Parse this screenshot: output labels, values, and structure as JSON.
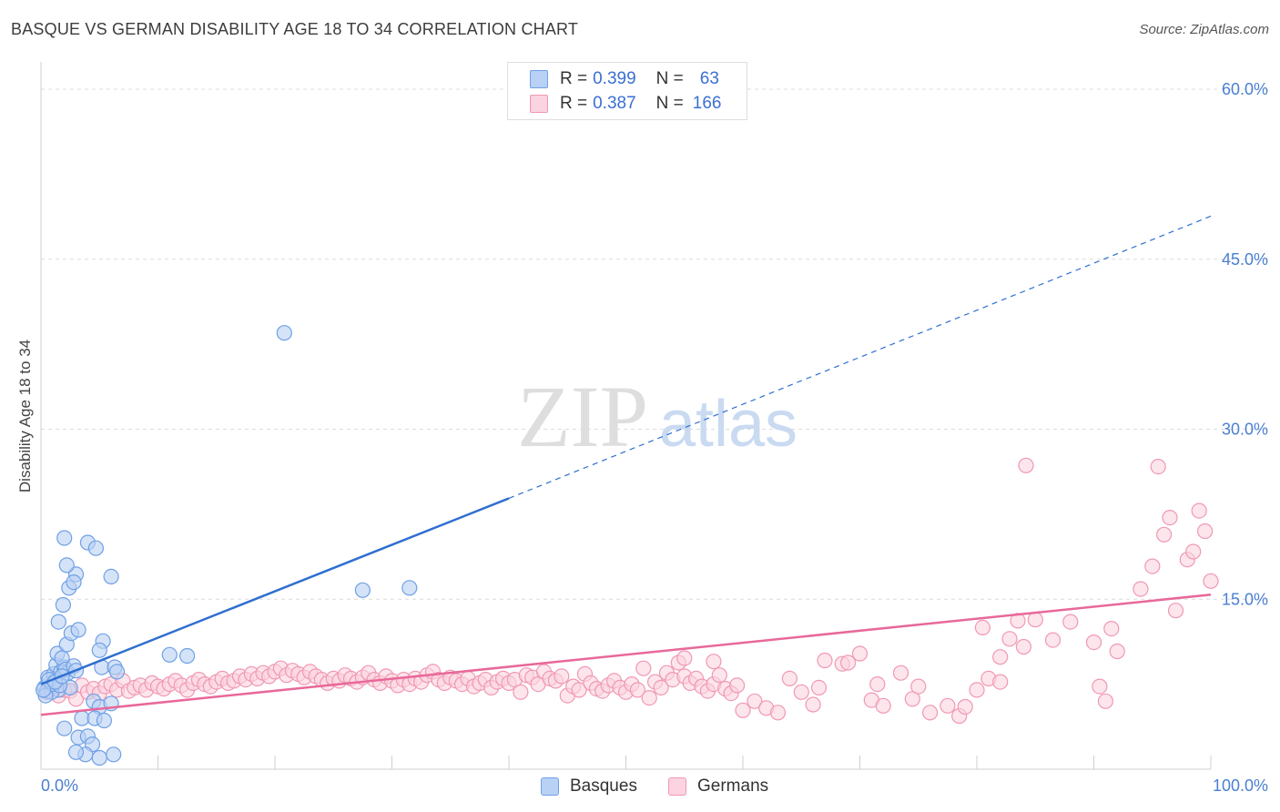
{
  "header": {
    "title": "BASQUE VS GERMAN DISABILITY AGE 18 TO 34 CORRELATION CHART",
    "source": "Source: ZipAtlas.com"
  },
  "watermark": {
    "zip": "ZIP",
    "atlas": "atlas"
  },
  "legend": {
    "rows": [
      {
        "r_label": "R =",
        "r_value": "0.399",
        "n_label": "N =",
        "n_value": "63",
        "color": "#a9c8f2"
      },
      {
        "r_label": "R =",
        "r_value": "0.387",
        "n_label": "N =",
        "n_value": "166",
        "color": "#f8b7cc"
      }
    ]
  },
  "bottom_legend": {
    "basques": "Basques",
    "germans": "Germans"
  },
  "chart_data": {
    "type": "scatter",
    "ylabel": "Disability Age 18 to 34",
    "xlim": [
      0,
      100
    ],
    "ylim": [
      0,
      60
    ],
    "y_ticks": [
      "15.0%",
      "30.0%",
      "45.0%",
      "60.0%"
    ],
    "x_ticks": [
      "0.0%",
      "100.0%"
    ],
    "grid": "horizontal dashed",
    "series": [
      {
        "name": "Basques",
        "color": "#6fa0e6",
        "fill": "#b9d1f4",
        "trend": {
          "x0": 0,
          "y0": 7.5,
          "x1": 40,
          "y1": 23.9,
          "dashed_to_x": 100,
          "dashed_to_y": 48.8,
          "color": "#2f6fd0"
        },
        "points": [
          [
            0.3,
            7.2
          ],
          [
            0.5,
            6.9
          ],
          [
            0.8,
            7.6
          ],
          [
            1.0,
            7.3
          ],
          [
            0.6,
            8.1
          ],
          [
            1.2,
            7.8
          ],
          [
            1.5,
            7.0
          ],
          [
            0.9,
            6.8
          ],
          [
            1.1,
            8.4
          ],
          [
            1.3,
            9.2
          ],
          [
            1.7,
            8.6
          ],
          [
            2.0,
            9.0
          ],
          [
            2.3,
            8.5
          ],
          [
            1.4,
            10.2
          ],
          [
            1.8,
            9.8
          ],
          [
            2.1,
            8.8
          ],
          [
            2.5,
            7.2
          ],
          [
            1.0,
            7.5
          ],
          [
            0.7,
            7.9
          ],
          [
            1.6,
            7.4
          ],
          [
            2.8,
            9.1
          ],
          [
            3.0,
            8.7
          ],
          [
            2.2,
            11.0
          ],
          [
            2.6,
            12.0
          ],
          [
            1.5,
            13.0
          ],
          [
            1.9,
            14.5
          ],
          [
            2.4,
            16.0
          ],
          [
            3.0,
            17.2
          ],
          [
            2.8,
            16.5
          ],
          [
            2.2,
            18.0
          ],
          [
            3.2,
            12.3
          ],
          [
            4.0,
            20.0
          ],
          [
            4.7,
            19.5
          ],
          [
            5.3,
            11.3
          ],
          [
            5.0,
            10.5
          ],
          [
            6.0,
            17.0
          ],
          [
            2.0,
            20.4
          ],
          [
            5.2,
            9.0
          ],
          [
            6.3,
            9.0
          ],
          [
            6.5,
            8.6
          ],
          [
            4.5,
            6.0
          ],
          [
            5.0,
            5.5
          ],
          [
            3.5,
            4.5
          ],
          [
            2.0,
            3.6
          ],
          [
            3.2,
            2.8
          ],
          [
            4.0,
            2.9
          ],
          [
            4.4,
            2.2
          ],
          [
            3.8,
            1.3
          ],
          [
            4.6,
            4.5
          ],
          [
            5.4,
            4.3
          ],
          [
            6.2,
            1.3
          ],
          [
            5.0,
            1.0
          ],
          [
            3.0,
            1.5
          ],
          [
            6.0,
            5.8
          ],
          [
            11.0,
            10.1
          ],
          [
            12.5,
            10.0
          ],
          [
            20.8,
            38.5
          ],
          [
            27.5,
            15.8
          ],
          [
            31.5,
            16.0
          ],
          [
            1.2,
            7.7
          ],
          [
            0.4,
            6.5
          ],
          [
            0.2,
            7.0
          ],
          [
            1.8,
            8.2
          ]
        ]
      },
      {
        "name": "Germans",
        "color": "#f098b4",
        "fill": "#fcd3e0",
        "trend": {
          "x0": 0,
          "y0": 4.8,
          "x1": 100,
          "y1": 15.4,
          "color": "#e8689a"
        },
        "points": [
          [
            0.5,
            6.8
          ],
          [
            1.0,
            7.2
          ],
          [
            1.5,
            6.5
          ],
          [
            2.0,
            7.0
          ],
          [
            2.5,
            6.9
          ],
          [
            3.0,
            6.2
          ],
          [
            3.5,
            7.4
          ],
          [
            4.0,
            6.8
          ],
          [
            4.5,
            7.1
          ],
          [
            5.0,
            6.7
          ],
          [
            5.5,
            7.3
          ],
          [
            6.0,
            7.5
          ],
          [
            6.5,
            7.0
          ],
          [
            7.0,
            7.8
          ],
          [
            7.5,
            6.9
          ],
          [
            8.0,
            7.2
          ],
          [
            8.5,
            7.4
          ],
          [
            9.0,
            7.0
          ],
          [
            9.5,
            7.6
          ],
          [
            10.0,
            7.3
          ],
          [
            10.5,
            7.1
          ],
          [
            11.0,
            7.5
          ],
          [
            11.5,
            7.8
          ],
          [
            12.0,
            7.4
          ],
          [
            12.5,
            7.0
          ],
          [
            13.0,
            7.6
          ],
          [
            13.5,
            7.9
          ],
          [
            14.0,
            7.5
          ],
          [
            14.5,
            7.3
          ],
          [
            15.0,
            7.7
          ],
          [
            15.5,
            8.0
          ],
          [
            16.0,
            7.6
          ],
          [
            16.5,
            7.8
          ],
          [
            17.0,
            8.2
          ],
          [
            17.5,
            7.9
          ],
          [
            18.0,
            8.4
          ],
          [
            18.5,
            8.0
          ],
          [
            19.0,
            8.5
          ],
          [
            19.5,
            8.2
          ],
          [
            20.0,
            8.6
          ],
          [
            20.5,
            8.9
          ],
          [
            21.0,
            8.3
          ],
          [
            21.5,
            8.7
          ],
          [
            22.0,
            8.4
          ],
          [
            22.5,
            8.1
          ],
          [
            23.0,
            8.6
          ],
          [
            23.5,
            8.2
          ],
          [
            24.0,
            7.9
          ],
          [
            24.5,
            7.6
          ],
          [
            25.0,
            8.0
          ],
          [
            25.5,
            7.8
          ],
          [
            26.0,
            8.3
          ],
          [
            26.5,
            8.0
          ],
          [
            27.0,
            7.7
          ],
          [
            27.5,
            8.1
          ],
          [
            28.0,
            8.5
          ],
          [
            28.5,
            7.9
          ],
          [
            29.0,
            7.6
          ],
          [
            29.5,
            8.2
          ],
          [
            30.0,
            7.8
          ],
          [
            30.5,
            7.4
          ],
          [
            31.0,
            7.9
          ],
          [
            31.5,
            7.5
          ],
          [
            32.0,
            8.0
          ],
          [
            32.5,
            7.7
          ],
          [
            33.0,
            8.3
          ],
          [
            33.5,
            8.6
          ],
          [
            34.0,
            7.9
          ],
          [
            34.5,
            7.6
          ],
          [
            35.0,
            8.1
          ],
          [
            35.5,
            7.8
          ],
          [
            36.0,
            7.5
          ],
          [
            36.5,
            8.0
          ],
          [
            37.0,
            7.3
          ],
          [
            37.5,
            7.6
          ],
          [
            38.0,
            7.9
          ],
          [
            38.5,
            7.2
          ],
          [
            39.0,
            7.7
          ],
          [
            39.5,
            8.0
          ],
          [
            40.0,
            7.6
          ],
          [
            40.5,
            7.9
          ],
          [
            41.0,
            6.8
          ],
          [
            41.5,
            8.3
          ],
          [
            42.0,
            8.1
          ],
          [
            42.5,
            7.5
          ],
          [
            43.0,
            8.6
          ],
          [
            43.5,
            8.0
          ],
          [
            44.0,
            7.8
          ],
          [
            44.5,
            8.2
          ],
          [
            45.0,
            6.5
          ],
          [
            45.5,
            7.3
          ],
          [
            46.0,
            7.0
          ],
          [
            46.5,
            8.4
          ],
          [
            47.0,
            7.6
          ],
          [
            47.5,
            7.1
          ],
          [
            48.0,
            6.9
          ],
          [
            48.5,
            7.4
          ],
          [
            49.0,
            7.8
          ],
          [
            49.5,
            7.2
          ],
          [
            50.0,
            6.8
          ],
          [
            50.5,
            7.5
          ],
          [
            51.0,
            7.0
          ],
          [
            51.5,
            8.9
          ],
          [
            52.0,
            6.3
          ],
          [
            52.5,
            7.7
          ],
          [
            53.0,
            7.2
          ],
          [
            53.5,
            8.5
          ],
          [
            54.0,
            7.9
          ],
          [
            54.5,
            9.4
          ],
          [
            55.0,
            8.2
          ],
          [
            55.5,
            7.6
          ],
          [
            56.0,
            8.0
          ],
          [
            56.5,
            7.3
          ],
          [
            57.0,
            6.9
          ],
          [
            57.5,
            7.5
          ],
          [
            58.0,
            8.3
          ],
          [
            58.5,
            7.1
          ],
          [
            59.0,
            6.7
          ],
          [
            59.5,
            7.4
          ],
          [
            55.0,
            9.8
          ],
          [
            57.5,
            9.5
          ],
          [
            60.0,
            5.2
          ],
          [
            61.0,
            6.0
          ],
          [
            62.0,
            5.4
          ],
          [
            63.0,
            5.0
          ],
          [
            64.0,
            8.0
          ],
          [
            65.0,
            6.8
          ],
          [
            66.0,
            5.7
          ],
          [
            66.5,
            7.2
          ],
          [
            67.0,
            9.6
          ],
          [
            68.5,
            9.3
          ],
          [
            69.0,
            9.4
          ],
          [
            70.0,
            10.2
          ],
          [
            71.0,
            6.1
          ],
          [
            71.5,
            7.5
          ],
          [
            72.0,
            5.6
          ],
          [
            73.5,
            8.5
          ],
          [
            74.5,
            6.2
          ],
          [
            75.0,
            7.3
          ],
          [
            76.0,
            5.0
          ],
          [
            77.5,
            5.6
          ],
          [
            78.5,
            4.7
          ],
          [
            79.0,
            5.5
          ],
          [
            80.0,
            7.0
          ],
          [
            81.0,
            8.0
          ],
          [
            82.0,
            9.9
          ],
          [
            80.5,
            12.5
          ],
          [
            82.8,
            11.5
          ],
          [
            84.0,
            10.8
          ],
          [
            85.0,
            13.2
          ],
          [
            86.5,
            11.4
          ],
          [
            88.0,
            13.0
          ],
          [
            90.0,
            11.2
          ],
          [
            90.5,
            7.3
          ],
          [
            91.0,
            6.0
          ],
          [
            91.5,
            12.4
          ],
          [
            92.0,
            10.4
          ],
          [
            94.0,
            15.9
          ],
          [
            95.0,
            17.9
          ],
          [
            96.0,
            20.7
          ],
          [
            97.0,
            14.0
          ],
          [
            98.0,
            18.5
          ],
          [
            99.0,
            22.8
          ],
          [
            100.0,
            16.6
          ],
          [
            95.5,
            26.7
          ],
          [
            96.5,
            22.2
          ],
          [
            98.5,
            19.2
          ],
          [
            99.5,
            21.0
          ],
          [
            83.5,
            13.1
          ],
          [
            84.2,
            26.8
          ],
          [
            82.0,
            7.7
          ]
        ]
      }
    ]
  }
}
